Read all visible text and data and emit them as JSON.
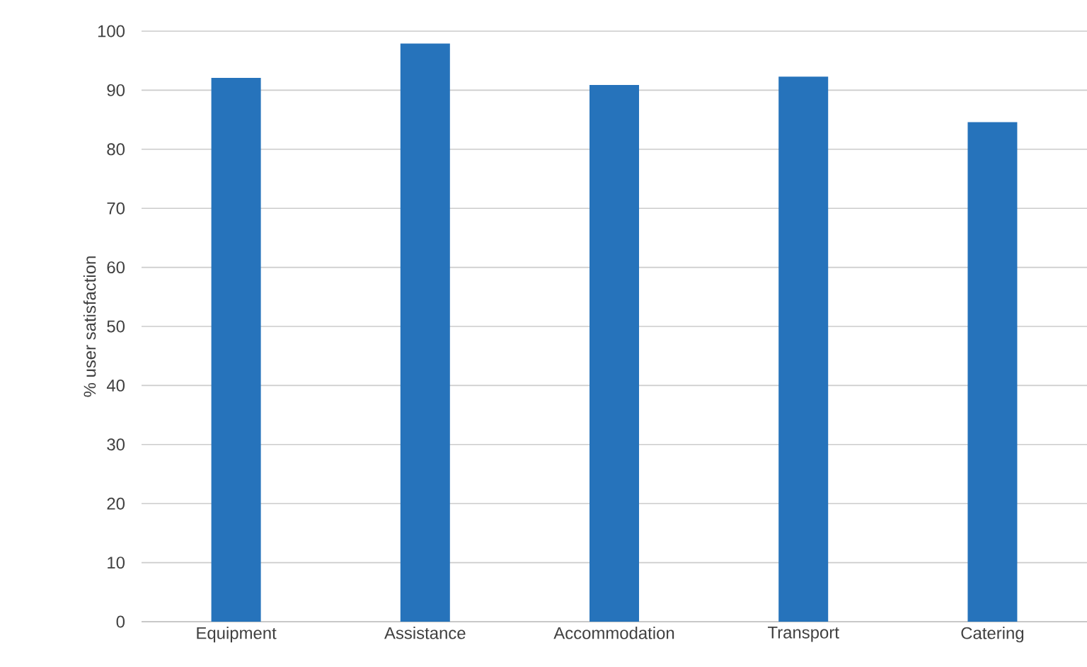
{
  "chart_data": {
    "type": "bar",
    "ylabel": "% user satisfaction",
    "categories": [
      "Equipment",
      "Assistance",
      "Accommodation",
      "Transport",
      "Catering"
    ],
    "values": [
      92.1,
      97.9,
      90.9,
      92.3,
      84.6
    ],
    "color": "#2673bb",
    "ylim": [
      0,
      100
    ],
    "yticks": [
      0,
      10,
      20,
      30,
      40,
      50,
      60,
      70,
      80,
      90,
      100
    ],
    "grid": "y"
  }
}
